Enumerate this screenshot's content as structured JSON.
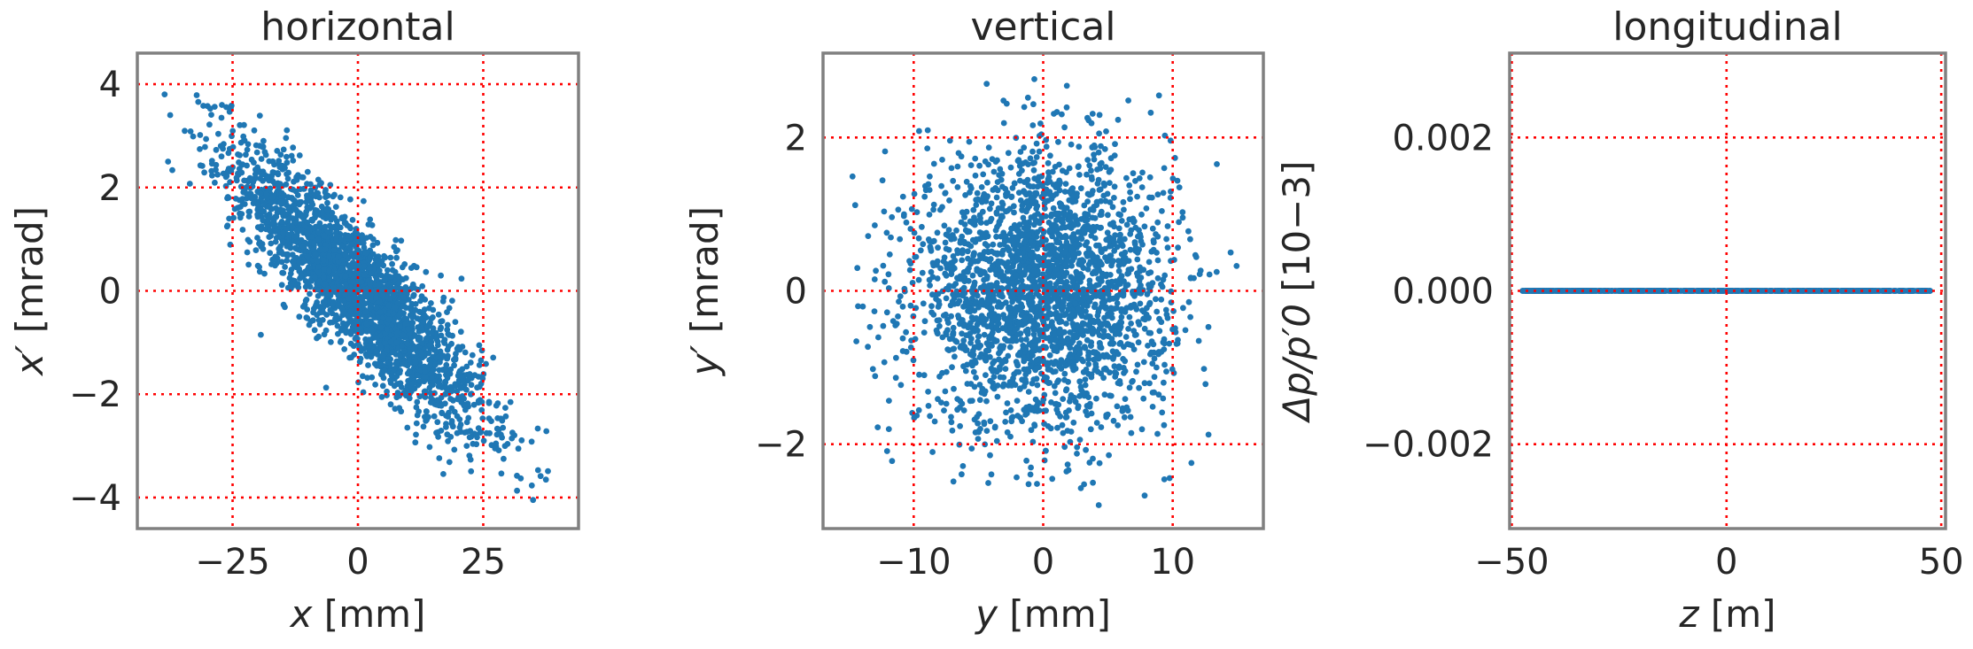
{
  "chart_data": [
    {
      "type": "scatter",
      "title": "horizontal",
      "xlabel": {
        "var": "x",
        "unit": " [mm]"
      },
      "ylabel": {
        "var": "x′",
        "unit": " [mrad]"
      },
      "xlim": [
        -44,
        44
      ],
      "ylim": [
        -4.6,
        4.6
      ],
      "xticks": [
        -25,
        0,
        25
      ],
      "xtick_labels": [
        "−25",
        "0",
        "25"
      ],
      "yticks": [
        -4,
        -2,
        0,
        2,
        4
      ],
      "ytick_labels": [
        "−4",
        "−2",
        "0",
        "2",
        "4"
      ],
      "grid": true,
      "distribution": {
        "n": 2600,
        "x_sigma": 12.5,
        "y_sigma": 1.35,
        "correlation": -0.88,
        "x_range": [
          -39,
          39
        ],
        "y_range": [
          -4.1,
          4.1
        ]
      },
      "series": [
        {
          "values": "gaussian beam particles (x, x′)"
        }
      ]
    },
    {
      "type": "scatter",
      "title": "vertical",
      "xlabel": {
        "var": "y",
        "unit": " [mm]"
      },
      "ylabel": {
        "var": "y′",
        "unit": " [mrad]"
      },
      "xlim": [
        -17,
        17
      ],
      "ylim": [
        -3.1,
        3.1
      ],
      "xticks": [
        -10,
        0,
        10
      ],
      "xtick_labels": [
        "−10",
        "0",
        "10"
      ],
      "yticks": [
        -2,
        0,
        2
      ],
      "ytick_labels": [
        "−2",
        "0",
        "2"
      ],
      "grid": true,
      "distribution": {
        "n": 2600,
        "x_sigma": 4.9,
        "y_sigma": 0.9,
        "correlation": 0.0,
        "x_range": [
          -15,
          15
        ],
        "y_range": [
          -2.8,
          2.8
        ]
      },
      "series": [
        {
          "values": "gaussian beam particles (y, y′)"
        }
      ]
    },
    {
      "type": "scatter",
      "title": "longitudinal",
      "xlabel": {
        "var": "z",
        "unit": " [m]"
      },
      "ylabel": {
        "var": "Δp/p′0",
        "unit": " [10−3]"
      },
      "xlim": [
        -50.5,
        51
      ],
      "ylim": [
        -0.0031,
        0.0031
      ],
      "xticks": [
        -50,
        0,
        50
      ],
      "xtick_labels": [
        "−50",
        "0",
        "50"
      ],
      "yticks": [
        -0.002,
        0.0,
        0.002
      ],
      "ytick_labels": [
        "−0.002",
        "0.000",
        "0.002"
      ],
      "grid": true,
      "distribution": {
        "n": 900,
        "x_uniform": [
          -47.5,
          47.5
        ],
        "y_value": 0.0
      },
      "series": [
        {
          "values": "uniform bunch along z at Δp/p′0 = 0"
        }
      ]
    }
  ],
  "colors": {
    "points": "#1f77b4",
    "grid": "#ff0000",
    "frame": "#808080",
    "text": "#262626"
  }
}
